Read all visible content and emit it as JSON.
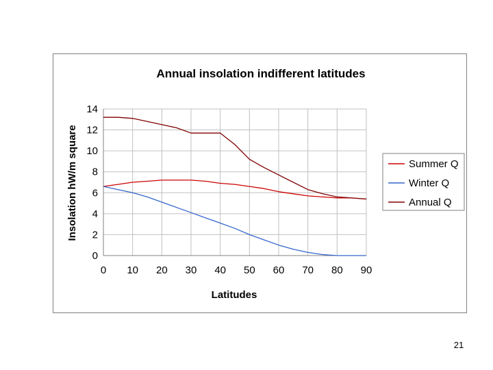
{
  "chart_data": {
    "type": "line",
    "title": "Annual insolation indifferent latitudes",
    "xlabel": "Latitudes",
    "ylabel": "Insolation hW/m square",
    "xlim": [
      0,
      90
    ],
    "ylim": [
      0,
      14
    ],
    "x_ticks": [
      0,
      10,
      20,
      30,
      40,
      50,
      60,
      70,
      80,
      90
    ],
    "y_ticks": [
      0,
      2,
      4,
      6,
      8,
      10,
      12,
      14
    ],
    "grid": true,
    "legend_position": "right",
    "x": [
      0,
      5,
      10,
      15,
      20,
      25,
      30,
      35,
      40,
      45,
      50,
      55,
      60,
      65,
      70,
      75,
      80,
      85,
      90
    ],
    "series": [
      {
        "name": "Summer Q",
        "color": "#cc0000",
        "values": [
          6.6,
          6.8,
          7.0,
          7.1,
          7.2,
          7.2,
          7.2,
          7.1,
          6.9,
          6.8,
          6.6,
          6.4,
          6.1,
          5.9,
          5.7,
          5.6,
          5.5,
          5.5,
          5.4
        ]
      },
      {
        "name": "Winter Q",
        "color": "#3366cc",
        "values": [
          6.6,
          6.3,
          6.0,
          5.6,
          5.1,
          4.6,
          4.1,
          3.6,
          3.1,
          2.6,
          2.0,
          1.5,
          1.0,
          0.6,
          0.3,
          0.1,
          0.0,
          0.0,
          0.0
        ]
      },
      {
        "name": "Annual Q",
        "color": "#800000",
        "values": [
          13.2,
          13.2,
          13.1,
          12.8,
          12.5,
          12.2,
          11.7,
          11.7,
          11.7,
          10.6,
          9.2,
          8.4,
          7.7,
          7.0,
          6.3,
          5.9,
          5.6,
          5.5,
          5.4
        ]
      }
    ]
  },
  "slide_number": "21"
}
